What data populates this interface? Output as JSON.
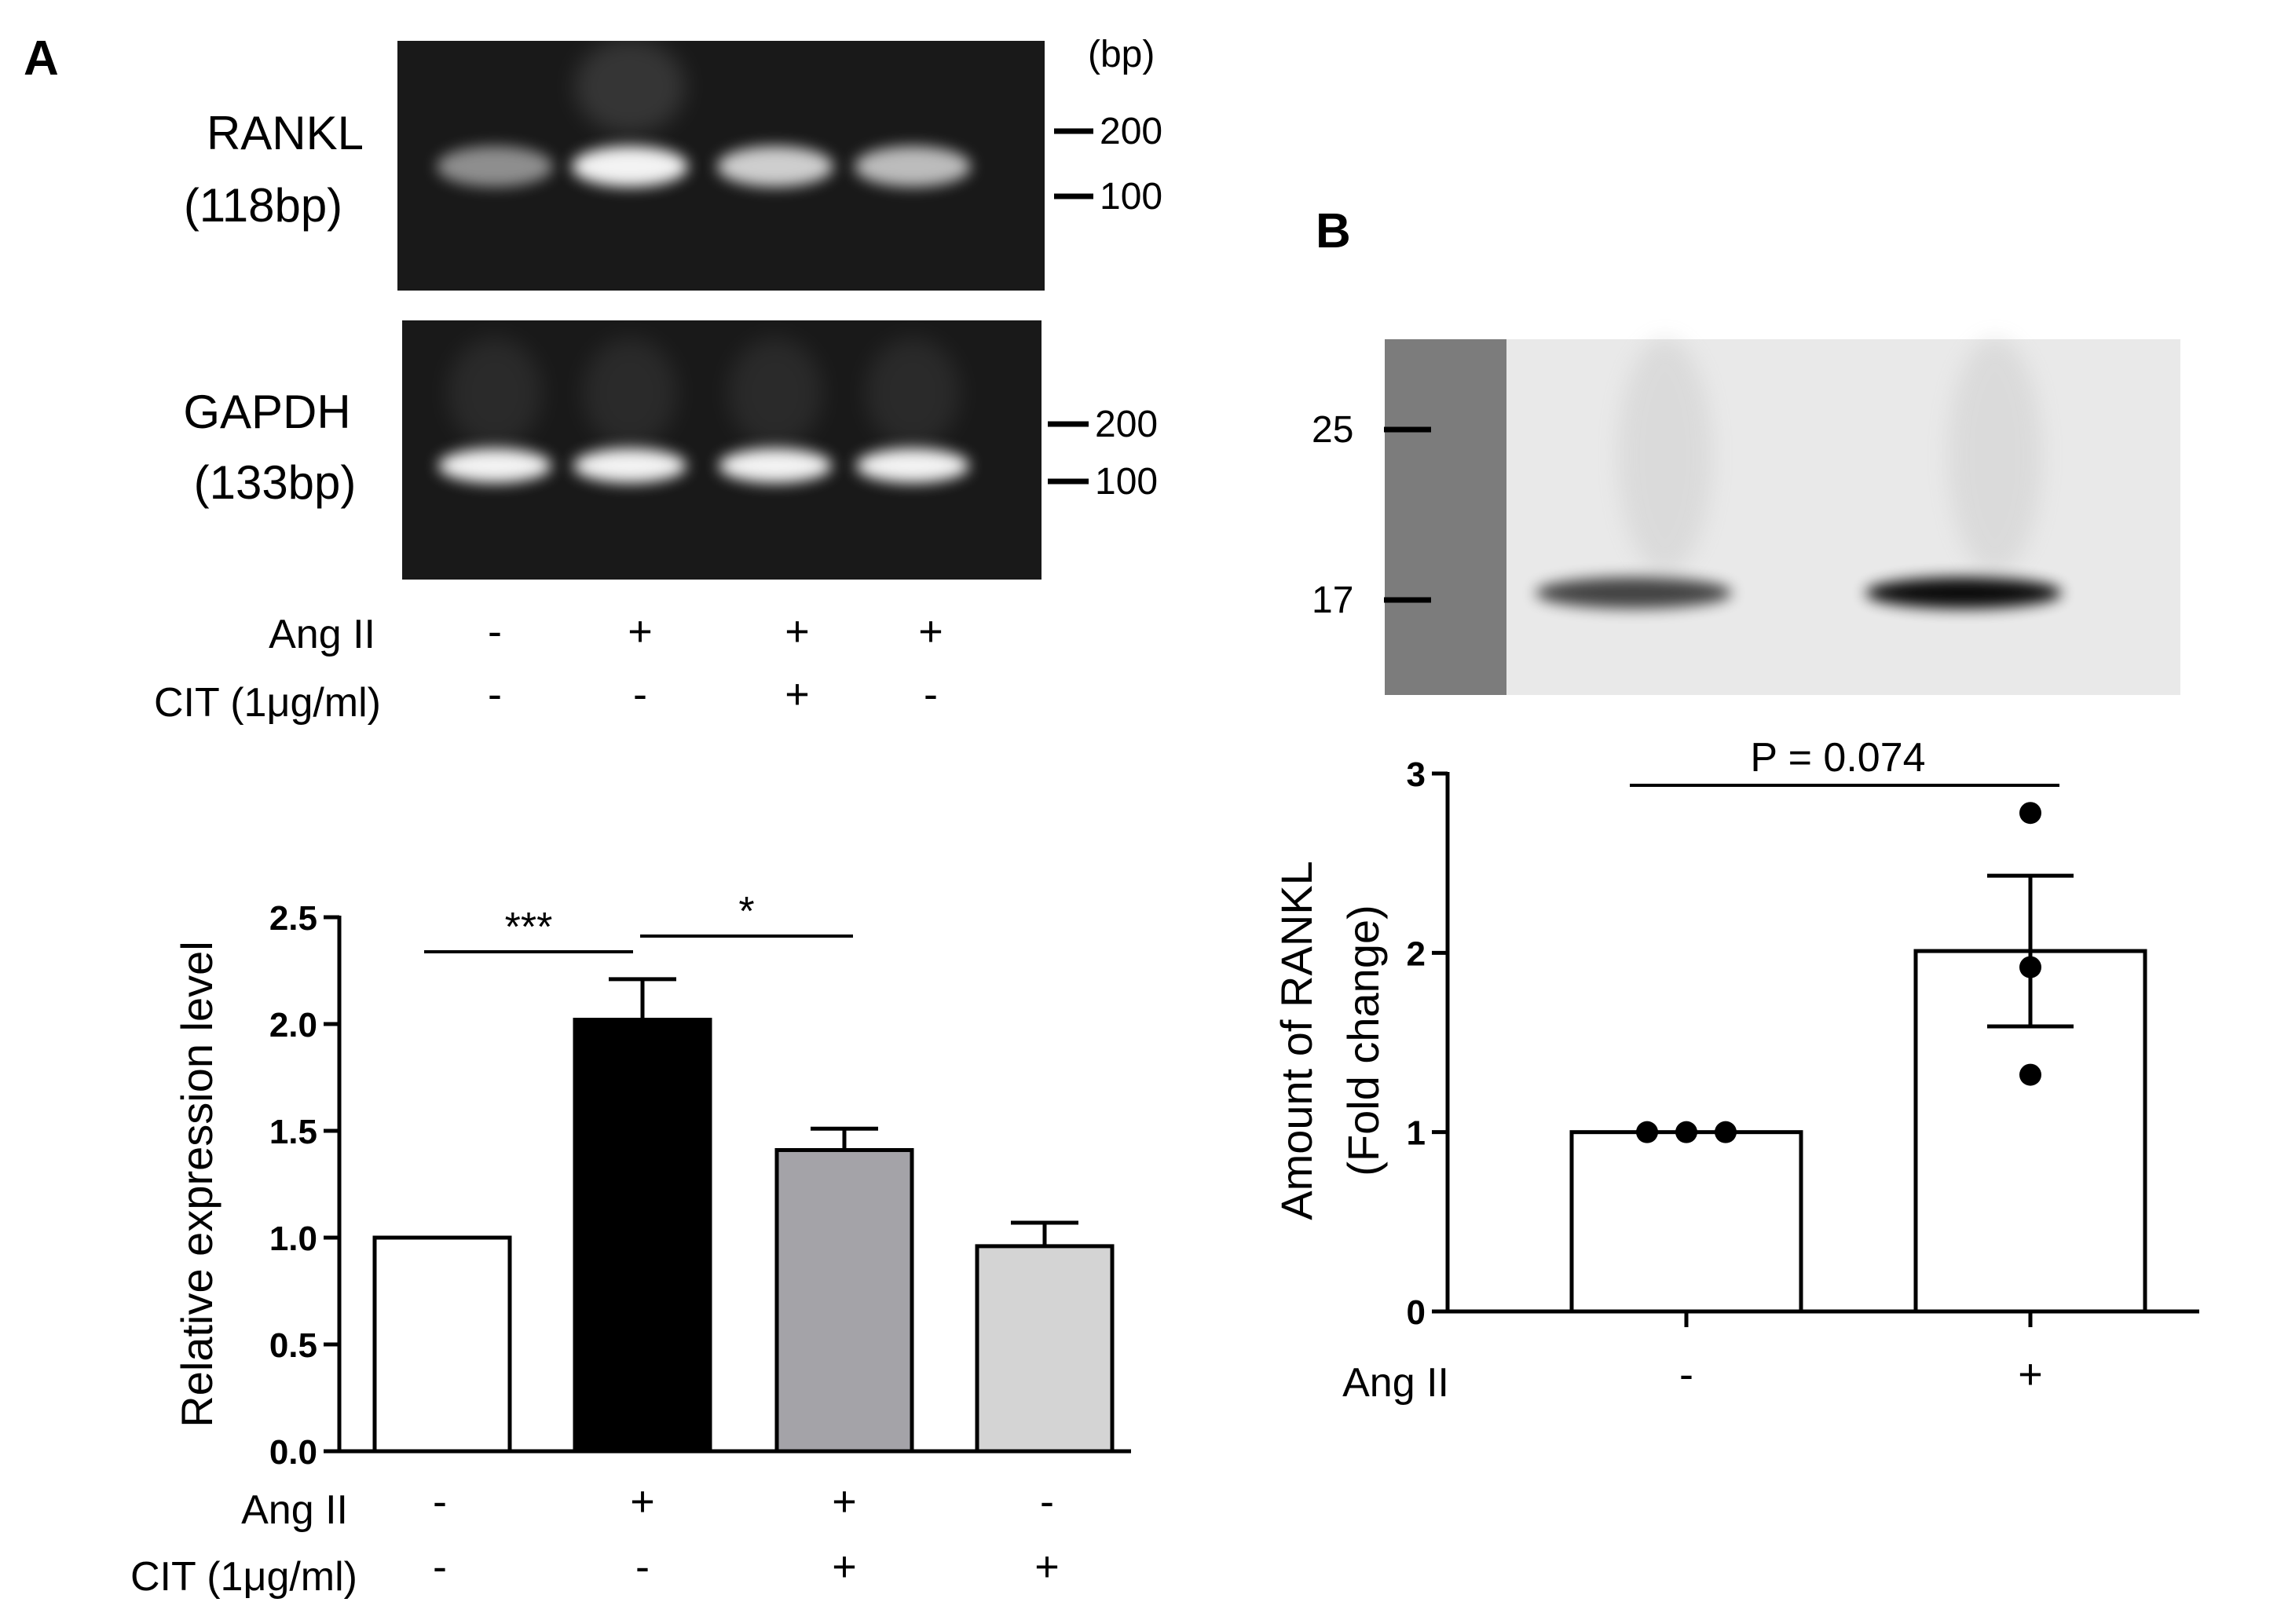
{
  "panel_a": {
    "label": "A",
    "gel": {
      "bp_unit": "(bp)",
      "rankl_name": "RANKL",
      "rankl_size": "(118bp)",
      "gapdh_name": "GAPDH",
      "gapdh_size": "(133bp)",
      "marker_200": "200",
      "marker_100": "100",
      "rankl_band_intensity": [
        0.45,
        1.0,
        0.8,
        0.7
      ],
      "gapdh_band_intensity": [
        1.0,
        1.0,
        1.0,
        1.0
      ],
      "conditions": {
        "ang_label": "Ang II",
        "cit_label": "CIT (1μg/ml)",
        "ang": [
          "-",
          "+",
          "+",
          "+"
        ],
        "cit": [
          "-",
          "-",
          "+",
          "-"
        ]
      }
    }
  },
  "panel_b": {
    "label": "B",
    "blot": {
      "marker_25": "25",
      "marker_17": "17",
      "band_intensity": [
        0.75,
        1.0
      ]
    }
  },
  "chart_data": [
    {
      "type": "bar",
      "ylabel": "Relative expression level",
      "ylim": [
        0,
        2.5
      ],
      "yticks": [
        "0.0",
        "0.5",
        "1.0",
        "1.5",
        "2.0",
        "2.5"
      ],
      "values": [
        1.0,
        2.02,
        1.41,
        0.96
      ],
      "errors": [
        0,
        0.19,
        0.1,
        0.11
      ],
      "bar_colors": [
        "#ffffff",
        "#000000",
        "#a4a3a8",
        "#d4d4d4"
      ],
      "conditions": {
        "ang_label": "Ang II",
        "cit_label": "CIT (1μg/ml)",
        "ang": [
          "-",
          "+",
          "+",
          "-"
        ],
        "cit": [
          "-",
          "-",
          "+",
          "+"
        ]
      },
      "significance": [
        {
          "from": 0,
          "to": 1,
          "text": "***"
        },
        {
          "from": 1,
          "to": 2,
          "text": "*"
        }
      ],
      "grid": false
    },
    {
      "type": "bar",
      "ylabel_line1": "Amount of RANKL",
      "ylabel_line2": "(Fold change)",
      "ylim": [
        0,
        3
      ],
      "yticks": [
        "0",
        "1",
        "2",
        "3"
      ],
      "values": [
        1.0,
        2.01
      ],
      "errors": [
        0,
        0.42
      ],
      "bar_colors": [
        "#ffffff",
        "#ffffff"
      ],
      "points": [
        [
          1.0,
          1.0,
          1.0
        ],
        [
          2.78,
          1.92,
          1.32
        ]
      ],
      "conditions": {
        "ang_label": "Ang II",
        "ang": [
          "-",
          "+"
        ]
      },
      "significance": [
        {
          "from": 0,
          "to": 1,
          "text": "P = 0.074"
        }
      ],
      "grid": false
    }
  ]
}
